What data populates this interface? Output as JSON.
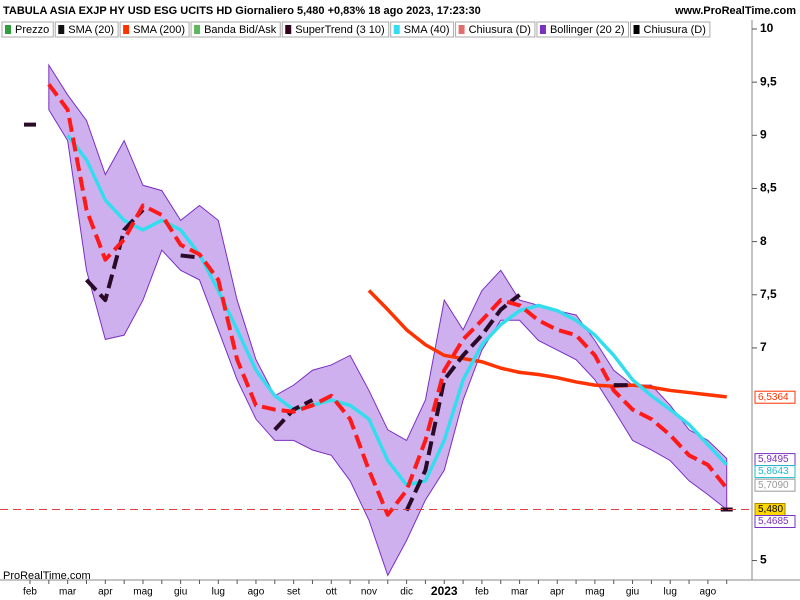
{
  "chart_data": {
    "type": "line",
    "title": "TABULA ASIA EXJP HY USD ESG UCITS HD Giornaliero 5,480 +0,83% 18 ago 2023, 17:23:30",
    "source": "www.ProRealTime.com",
    "watermark": "ProRealTime.com",
    "legend": [
      {
        "name": "Prezzo",
        "color": "#2e9e3e"
      },
      {
        "name": "SMA (20)",
        "color": "#111111"
      },
      {
        "name": "SMA (200)",
        "color": "#ff3300"
      },
      {
        "name": "Banda Bid/Ask",
        "color": "#5cb85c"
      },
      {
        "name": "SuperTrend (3 10)",
        "color": "#330022"
      },
      {
        "name": "SMA (40)",
        "color": "#33ddee"
      },
      {
        "name": "Chiusura (D)",
        "color": "#e07070"
      },
      {
        "name": "Bollinger (20 2)",
        "color": "#7a2fc0"
      },
      {
        "name": "Chiusura (D)",
        "color": "#000000"
      }
    ],
    "categories": [
      "feb",
      null,
      "mar",
      null,
      "apr",
      null,
      "mag",
      null,
      "giu",
      null,
      "lug",
      null,
      "ago",
      null,
      "set",
      null,
      "ott",
      null,
      "nov",
      null,
      "dic",
      null,
      "2023",
      null,
      "feb",
      null,
      "mar",
      null,
      "apr",
      null,
      "mag",
      null,
      "giu",
      null,
      "lug",
      null,
      "ago",
      null
    ],
    "ylim": [
      4.8,
      10.2
    ],
    "yticks": [
      10,
      {
        "value": 9.5,
        "label": "9,5"
      },
      9,
      {
        "value": 8.5,
        "label": "8,5"
      },
      8,
      {
        "value": 7.5,
        "label": "7,5"
      },
      7,
      5
    ],
    "series": [
      {
        "kind": "band",
        "color": "#bf95ea",
        "stroke": "#7a2fc0",
        "upper": [
          null,
          9.66,
          9.38,
          9.14,
          8.63,
          8.95,
          8.53,
          8.48,
          8.2,
          8.34,
          8.2,
          7.45,
          6.89,
          6.55,
          6.65,
          6.79,
          6.84,
          6.93,
          6.6,
          6.23,
          6.13,
          6.51,
          7.45,
          7.17,
          7.54,
          7.73,
          7.45,
          7.4,
          7.35,
          7.31,
          7.07,
          6.79,
          6.65,
          6.65,
          6.46,
          6.23,
          6.13,
          5.96
        ],
        "lower": [
          null,
          9.24,
          8.95,
          7.73,
          7.08,
          7.12,
          7.45,
          7.92,
          7.73,
          7.64,
          7.17,
          6.7,
          6.33,
          6.13,
          6.13,
          6.04,
          5.99,
          5.75,
          5.38,
          4.86,
          5.19,
          5.57,
          5.85,
          6.51,
          6.98,
          7.26,
          7.26,
          7.07,
          6.98,
          6.89,
          6.7,
          6.42,
          6.13,
          6.04,
          5.94,
          5.75,
          5.62,
          5.48
        ]
      },
      {
        "kind": "line",
        "color": "#ff3300",
        "width": 3.5,
        "dash": false,
        "values": [
          null,
          null,
          null,
          null,
          null,
          null,
          null,
          null,
          null,
          null,
          null,
          null,
          null,
          null,
          null,
          null,
          null,
          null,
          7.54,
          7.36,
          7.17,
          7.03,
          6.93,
          6.9,
          6.87,
          6.81,
          6.77,
          6.75,
          6.72,
          6.68,
          6.65,
          6.64,
          6.65,
          6.63,
          6.6,
          6.58,
          6.56,
          6.54
        ]
      },
      {
        "kind": "line",
        "color": "#33ddee",
        "width": 3.5,
        "dash": false,
        "values": [
          null,
          null,
          9.0,
          8.77,
          8.39,
          8.2,
          8.11,
          8.2,
          8.11,
          7.88,
          7.54,
          7.17,
          6.79,
          6.55,
          6.42,
          6.46,
          6.51,
          6.46,
          6.33,
          5.94,
          5.71,
          5.75,
          6.13,
          6.7,
          7.03,
          7.22,
          7.35,
          7.4,
          7.35,
          7.26,
          7.12,
          6.93,
          6.7,
          6.55,
          6.42,
          6.28,
          6.09,
          5.9
        ]
      },
      {
        "kind": "line",
        "color": "#2a0a26",
        "width": 4,
        "dash": true,
        "values": [
          9.1,
          null,
          null,
          7.64,
          7.45,
          8.11,
          8.3,
          null,
          7.87,
          7.85,
          null,
          null,
          null,
          6.23,
          6.42,
          6.51,
          null,
          null,
          null,
          null,
          5.47,
          5.85,
          6.7,
          6.93,
          7.12,
          7.36,
          7.5,
          null,
          null,
          null,
          null,
          6.65,
          6.65,
          null,
          null,
          null,
          null,
          5.48
        ]
      },
      {
        "kind": "line",
        "color": "#ff1a1a",
        "width": 4,
        "dash": true,
        "values": [
          null,
          9.48,
          9.24,
          8.3,
          7.83,
          8.02,
          8.34,
          8.25,
          7.97,
          7.88,
          7.64,
          6.89,
          6.46,
          6.42,
          6.4,
          6.46,
          6.55,
          6.33,
          5.85,
          5.43,
          5.66,
          6.13,
          6.79,
          7.08,
          7.26,
          7.45,
          7.4,
          7.26,
          7.17,
          7.12,
          6.93,
          6.6,
          6.42,
          6.33,
          6.18,
          5.99,
          5.9,
          5.68
        ]
      }
    ],
    "close": 5.48,
    "close_label": "5,480",
    "close_color": "#e04040",
    "price_labels": [
      {
        "value": 6.5364,
        "label": "6,5364",
        "color": "#ff3300"
      },
      {
        "value": 5.9495,
        "label": "5,9495",
        "color": "#7a2fc0"
      },
      {
        "value": 5.8643,
        "label": "5,8643",
        "color": "#22bbcc"
      },
      {
        "value": 5.709,
        "label": "5,7090",
        "color": "#999999"
      },
      {
        "value": 5.4685,
        "label": "5,4685",
        "color": "#7a2fc0"
      }
    ]
  }
}
